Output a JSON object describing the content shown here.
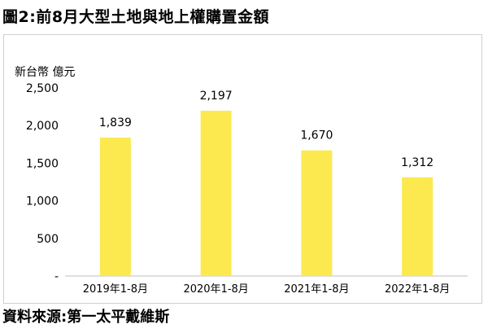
{
  "title": "圖2:前8月大型土地與地上權購置金額",
  "source": "資料來源:第一太平戴維斯",
  "chart_data": {
    "type": "bar",
    "title": "圖2:前8月大型土地與地上權購置金額",
    "unit_label": "新台幣 億元",
    "xlabel": "",
    "ylabel": "新台幣 億元",
    "categories": [
      "2019年1-8月",
      "2020年1-8月",
      "2021年1-8月",
      "2022年1-8月"
    ],
    "values": [
      1839,
      2197,
      1670,
      1312
    ],
    "value_labels": [
      "1,839",
      "2,197",
      "1,670",
      "1,312"
    ],
    "ylim": [
      0,
      2500
    ],
    "yticks": [
      0,
      500,
      1000,
      1500,
      2000,
      2500
    ],
    "ytick_labels": [
      "-",
      "500",
      "1,000",
      "1,500",
      "2,000",
      "2,500"
    ],
    "grid": false,
    "legend": "none",
    "bar_color": "#FCE94F"
  }
}
